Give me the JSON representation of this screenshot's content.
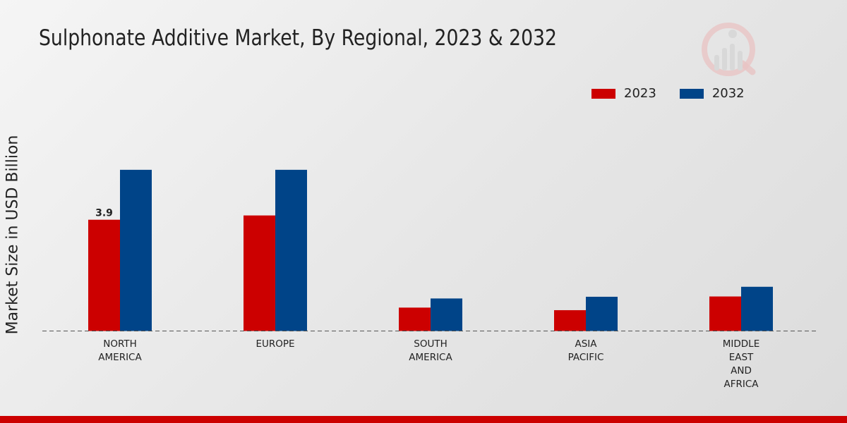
{
  "chart_data": {
    "type": "bar",
    "title": "Sulphonate Additive Market, By Regional, 2023 & 2032",
    "xlabel": "",
    "ylabel": "Market Size in USD Billion",
    "categories": [
      [
        "NORTH",
        "AMERICA"
      ],
      [
        "EUROPE"
      ],
      [
        "SOUTH",
        "AMERICA"
      ],
      [
        "ASIA",
        "PACIFIC"
      ],
      [
        "MIDDLE",
        "EAST",
        "AND",
        "AFRICA"
      ]
    ],
    "series": [
      {
        "name": "2023",
        "color": "#cc0000",
        "values": [
          3.9,
          4.05,
          0.82,
          0.73,
          1.21
        ]
      },
      {
        "name": "2032",
        "color": "#004488",
        "values": [
          5.65,
          5.65,
          1.14,
          1.2,
          1.55
        ]
      }
    ],
    "data_labels": [
      {
        "series": 0,
        "index": 0,
        "text": "3.9"
      }
    ],
    "ylim": [
      0,
      7.5
    ],
    "grid": false,
    "legend": "top-right"
  }
}
